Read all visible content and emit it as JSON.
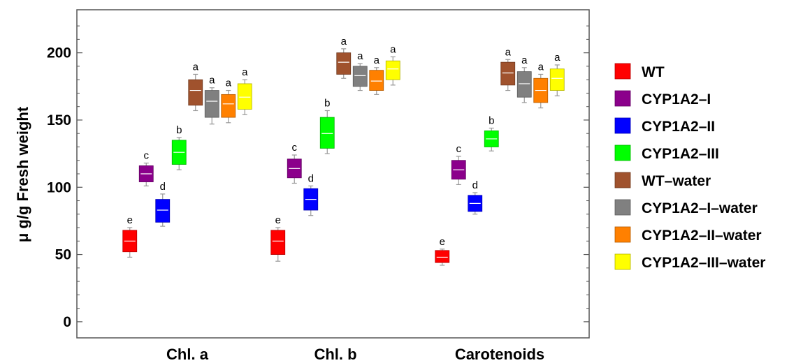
{
  "chart_data": {
    "type": "box",
    "title": "",
    "xlabel": "",
    "ylabel": "μ g/g Fresh weight",
    "ylim": [
      -12,
      232
    ],
    "yticks": [
      0,
      50,
      100,
      150,
      200
    ],
    "grid": false,
    "legend_position": "right",
    "categories": [
      "Chl. a",
      "Chl. b",
      "Carotenoids"
    ],
    "series": [
      {
        "name": "WT",
        "color": "#ff0000",
        "boxes": [
          {
            "min": 48,
            "q1": 52,
            "median": 60,
            "q3": 68,
            "max": 70,
            "label": "e"
          },
          {
            "min": 45,
            "q1": 50,
            "median": 60,
            "q3": 68,
            "max": 70,
            "label": "e"
          },
          {
            "min": 42,
            "q1": 44,
            "median": 48,
            "q3": 53,
            "max": 54,
            "label": "e"
          }
        ]
      },
      {
        "name": "CYP1A2–I",
        "color": "#8b008b",
        "boxes": [
          {
            "min": 101,
            "q1": 104,
            "median": 110,
            "q3": 116,
            "max": 118,
            "label": "c"
          },
          {
            "min": 103,
            "q1": 107,
            "median": 114,
            "q3": 121,
            "max": 124,
            "label": "c"
          },
          {
            "min": 102,
            "q1": 106,
            "median": 113,
            "q3": 120,
            "max": 123,
            "label": "c"
          }
        ]
      },
      {
        "name": "CYP1A2–II",
        "color": "#0000ff",
        "boxes": [
          {
            "min": 71,
            "q1": 74,
            "median": 83,
            "q3": 91,
            "max": 95,
            "label": "d"
          },
          {
            "min": 79,
            "q1": 83,
            "median": 91,
            "q3": 99,
            "max": 101,
            "label": "d"
          },
          {
            "min": 80,
            "q1": 82,
            "median": 88,
            "q3": 94,
            "max": 96,
            "label": "d"
          }
        ]
      },
      {
        "name": "CYP1A2–III",
        "color": "#00ff00",
        "boxes": [
          {
            "min": 113,
            "q1": 117,
            "median": 126,
            "q3": 135,
            "max": 137,
            "label": "b"
          },
          {
            "min": 125,
            "q1": 129,
            "median": 140,
            "q3": 152,
            "max": 157,
            "label": "b"
          },
          {
            "min": 127,
            "q1": 130,
            "median": 136,
            "q3": 142,
            "max": 144,
            "label": "b"
          }
        ]
      },
      {
        "name": "WT–water",
        "color": "#a0522d",
        "boxes": [
          {
            "min": 157,
            "q1": 161,
            "median": 172,
            "q3": 180,
            "max": 184,
            "label": "a"
          },
          {
            "min": 181,
            "q1": 184,
            "median": 193,
            "q3": 200,
            "max": 203,
            "label": "a"
          },
          {
            "min": 172,
            "q1": 176,
            "median": 185,
            "q3": 193,
            "max": 195,
            "label": "a"
          }
        ]
      },
      {
        "name": "CYP1A2–I–water",
        "color": "#808080",
        "boxes": [
          {
            "min": 147,
            "q1": 152,
            "median": 164,
            "q3": 172,
            "max": 174,
            "label": "a"
          },
          {
            "min": 172,
            "q1": 175,
            "median": 183,
            "q3": 190,
            "max": 192,
            "label": "a"
          },
          {
            "min": 163,
            "q1": 167,
            "median": 177,
            "q3": 186,
            "max": 189,
            "label": "a"
          }
        ]
      },
      {
        "name": "CYP1A2–II–water",
        "color": "#ff8000",
        "boxes": [
          {
            "min": 148,
            "q1": 152,
            "median": 162,
            "q3": 169,
            "max": 172,
            "label": "a"
          },
          {
            "min": 169,
            "q1": 172,
            "median": 179,
            "q3": 187,
            "max": 189,
            "label": "a"
          },
          {
            "min": 159,
            "q1": 163,
            "median": 172,
            "q3": 181,
            "max": 184,
            "label": "a"
          }
        ]
      },
      {
        "name": "CYP1A2–III–water",
        "color": "#ffff00",
        "boxes": [
          {
            "min": 154,
            "q1": 158,
            "median": 167,
            "q3": 177,
            "max": 180,
            "label": "a"
          },
          {
            "min": 176,
            "q1": 180,
            "median": 188,
            "q3": 194,
            "max": 197,
            "label": "a"
          },
          {
            "min": 168,
            "q1": 172,
            "median": 181,
            "q3": 188,
            "max": 191,
            "label": "a"
          }
        ]
      }
    ]
  }
}
